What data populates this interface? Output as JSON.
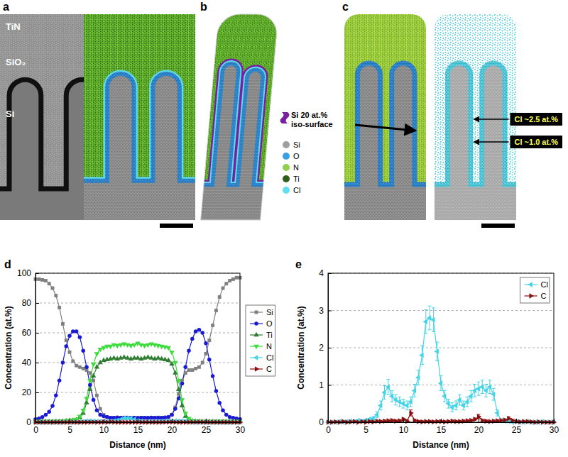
{
  "figure": {
    "panel_labels": [
      "a",
      "b",
      "c",
      "d",
      "e"
    ],
    "panel_a": {
      "labels": [
        "TiN",
        "SiO₂",
        "Si"
      ]
    },
    "panel_b": {
      "iso_surface": {
        "label": "Si 20 at.% iso-surface",
        "color": "#7a1fa0"
      },
      "elements": [
        {
          "name": "Si",
          "color": "#9e9e9e"
        },
        {
          "name": "O",
          "color": "#3aa0e0"
        },
        {
          "name": "N",
          "color": "#8fd14f"
        },
        {
          "name": "Ti",
          "color": "#2f5f1f"
        },
        {
          "name": "Cl",
          "color": "#5fe0ee"
        }
      ]
    },
    "panel_c": {
      "annotations": [
        "Cl ~2.5 at.%",
        "Cl ~1.0 at.%"
      ]
    }
  },
  "chart_data": [
    {
      "type": "line",
      "x_label": "Distance (nm)",
      "y_label": "Concentration (at.%)",
      "x": [
        0,
        0.5,
        1,
        1.5,
        2,
        2.5,
        3,
        3.5,
        4,
        4.5,
        5,
        5.5,
        6,
        6.5,
        7,
        7.5,
        8,
        8.5,
        9,
        9.5,
        10,
        10.5,
        11,
        11.5,
        12,
        12.5,
        13,
        13.5,
        14,
        14.5,
        15,
        15.5,
        16,
        16.5,
        17,
        17.5,
        18,
        18.5,
        19,
        19.5,
        20,
        20.5,
        21,
        21.5,
        22,
        22.5,
        23,
        23.5,
        24,
        24.5,
        25,
        25.5,
        26,
        26.5,
        27,
        27.5,
        28,
        28.5,
        29,
        29.5,
        30
      ],
      "xlim": [
        0,
        30
      ],
      "xticks": [
        0,
        5,
        10,
        15,
        20,
        25,
        30
      ],
      "ylim": [
        0,
        100
      ],
      "yticks": [
        0,
        20,
        40,
        60,
        80,
        100
      ],
      "grid": "y",
      "legend": "right",
      "series": [
        {
          "name": "Si",
          "color": "#808080",
          "marker": "square",
          "values": [
            96,
            96,
            95.5,
            95,
            93,
            90,
            85,
            77,
            66,
            55,
            47,
            41,
            38,
            37,
            36,
            35,
            33,
            28,
            18,
            9,
            5,
            3.5,
            3,
            3,
            2.8,
            3,
            3.2,
            3,
            2.9,
            3,
            3,
            3.1,
            3,
            2.8,
            3,
            3,
            3.2,
            3,
            3,
            3.5,
            5,
            10,
            19,
            28,
            33,
            35,
            35,
            36,
            37,
            40,
            46,
            55,
            65,
            75,
            84,
            90,
            93,
            95,
            96,
            97,
            97
          ]
        },
        {
          "name": "O",
          "color": "#1a1ad6",
          "marker": "circle",
          "values": [
            2,
            2.5,
            3.5,
            5,
            7,
            11,
            18,
            28,
            40,
            51,
            58,
            61,
            61,
            57,
            48,
            37,
            25,
            15,
            8,
            5,
            4,
            3.5,
            3,
            3,
            3.2,
            3,
            3,
            3.1,
            3,
            3,
            2.9,
            3,
            3,
            3,
            3.1,
            3,
            3,
            3,
            3.2,
            3.5,
            5,
            9,
            16,
            26,
            37,
            48,
            56,
            61,
            62,
            60,
            53,
            42,
            31,
            21,
            13,
            8,
            5,
            3.5,
            3,
            2.5,
            2
          ]
        },
        {
          "name": "Ti",
          "color": "#2e7d32",
          "marker": "triangle-up",
          "values": [
            0.3,
            0.3,
            0.3,
            0.3,
            0.3,
            0.3,
            0.4,
            0.5,
            0.6,
            0.8,
            1,
            1.2,
            1.5,
            3,
            6,
            13,
            22,
            31,
            37,
            40,
            41.5,
            42,
            42.5,
            43,
            42.5,
            43,
            43.5,
            43,
            42.5,
            43,
            43,
            42.5,
            43,
            43.5,
            43,
            42.5,
            43,
            42.5,
            42,
            41.5,
            39,
            33,
            22,
            11,
            4,
            1.5,
            0.8,
            0.5,
            0.4,
            0.3,
            0.3,
            0.3,
            0.3,
            0.3,
            0.3,
            0.3,
            0.3,
            0.3,
            0.3,
            0.3,
            0.3
          ]
        },
        {
          "name": "N",
          "color": "#3ddc3d",
          "marker": "triangle-down",
          "values": [
            0.5,
            0.5,
            0.5,
            0.5,
            0.5,
            0.5,
            0.6,
            0.7,
            0.8,
            1,
            1.2,
            1.5,
            2,
            4,
            8,
            16,
            28,
            39,
            46,
            49,
            50,
            51,
            51,
            52,
            51.5,
            52,
            52.5,
            52,
            51.5,
            52,
            53,
            52,
            51.5,
            52,
            52.5,
            52,
            51.5,
            51,
            50.5,
            50,
            47,
            40,
            28,
            15,
            6,
            2.5,
            1.2,
            0.8,
            0.6,
            0.5,
            0.5,
            0.5,
            0.5,
            0.5,
            0.5,
            0.5,
            0.5,
            0.5,
            0.5,
            0.5,
            0.5
          ]
        },
        {
          "name": "Cl",
          "color": "#45d4e6",
          "marker": "triangle-left",
          "values": [
            0,
            0,
            0,
            0.02,
            0,
            0.02,
            0.03,
            0.02,
            0.05,
            0.03,
            0.05,
            0.08,
            0.1,
            0.2,
            0.45,
            0.8,
            0.95,
            0.7,
            0.6,
            0.55,
            0.5,
            0.45,
            0.55,
            0.85,
            1.2,
            1.8,
            2.7,
            2.8,
            2.75,
            1.9,
            1.05,
            0.7,
            0.5,
            0.4,
            0.45,
            0.6,
            0.45,
            0.55,
            0.7,
            0.85,
            0.9,
            0.95,
            0.85,
            0.95,
            0.75,
            0.25,
            0.05,
            0.03,
            0.02,
            0,
            0.02,
            0,
            0,
            0.02,
            0,
            0,
            0,
            0.02,
            0,
            0,
            0
          ]
        },
        {
          "name": "C",
          "color": "#8b1010",
          "marker": "triangle-right",
          "values": [
            0,
            0,
            0.01,
            0,
            0.02,
            0,
            0.01,
            0.02,
            0,
            0.02,
            0,
            0.02,
            0.01,
            0.03,
            0.02,
            0.03,
            0.04,
            0.05,
            0.03,
            0.04,
            0.08,
            0.03,
            0.25,
            0.05,
            0.02,
            0.01,
            0.02,
            0.02,
            0.01,
            0.02,
            0.02,
            0.01,
            0.02,
            0.03,
            0.02,
            0.02,
            0.03,
            0.04,
            0.05,
            0.08,
            0.15,
            0.05,
            0.03,
            0.02,
            0.03,
            0.04,
            0.05,
            0.06,
            0.1,
            0.05,
            0.02,
            0.01,
            0.02,
            0.02,
            0.01,
            0,
            0.01,
            0,
            0,
            0,
            0
          ]
        }
      ]
    },
    {
      "type": "line",
      "x_label": "Distance (nm)",
      "y_label": "Concentration (at.%)",
      "x": [
        0,
        0.5,
        1,
        1.5,
        2,
        2.5,
        3,
        3.5,
        4,
        4.5,
        5,
        5.5,
        6,
        6.5,
        7,
        7.5,
        8,
        8.5,
        9,
        9.5,
        10,
        10.5,
        11,
        11.5,
        12,
        12.5,
        13,
        13.5,
        14,
        14.5,
        15,
        15.5,
        16,
        16.5,
        17,
        17.5,
        18,
        18.5,
        19,
        19.5,
        20,
        20.5,
        21,
        21.5,
        22,
        22.5,
        23,
        23.5,
        24,
        24.5,
        25,
        25.5,
        26,
        26.5,
        27,
        27.5,
        28,
        28.5,
        29,
        29.5,
        30
      ],
      "xlim": [
        0,
        30
      ],
      "xticks": [
        0,
        5,
        10,
        15,
        20,
        25,
        30
      ],
      "ylim": [
        0,
        4
      ],
      "yticks": [
        0,
        1,
        2,
        3,
        4
      ],
      "grid": "y",
      "legend": "upper right",
      "series": [
        {
          "name": "Cl",
          "color": "#45d4e6",
          "marker": "triangle-left",
          "values": [
            0,
            0,
            0,
            0.02,
            0,
            0.02,
            0.03,
            0.02,
            0.05,
            0.03,
            0.05,
            0.08,
            0.1,
            0.2,
            0.45,
            0.8,
            0.95,
            0.7,
            0.6,
            0.55,
            0.5,
            0.45,
            0.55,
            0.85,
            1.2,
            1.8,
            2.7,
            2.8,
            2.75,
            1.9,
            1.05,
            0.7,
            0.5,
            0.4,
            0.45,
            0.6,
            0.45,
            0.55,
            0.7,
            0.85,
            0.9,
            0.95,
            0.85,
            0.95,
            0.75,
            0.25,
            0.05,
            0.03,
            0.02,
            0,
            0.02,
            0,
            0,
            0.02,
            0,
            0,
            0,
            0.02,
            0,
            0,
            0
          ],
          "errors": [
            0.02,
            0.02,
            0.02,
            0.02,
            0.02,
            0.02,
            0.02,
            0.02,
            0.02,
            0.02,
            0.02,
            0.02,
            0.05,
            0.08,
            0.12,
            0.18,
            0.2,
            0.15,
            0.14,
            0.13,
            0.12,
            0.12,
            0.13,
            0.17,
            0.2,
            0.25,
            0.32,
            0.32,
            0.32,
            0.25,
            0.2,
            0.15,
            0.12,
            0.12,
            0.12,
            0.14,
            0.12,
            0.13,
            0.15,
            0.17,
            0.18,
            0.18,
            0.17,
            0.18,
            0.16,
            0.08,
            0.03,
            0.02,
            0.02,
            0.02,
            0.02,
            0.02,
            0.02,
            0.02,
            0.02,
            0.02,
            0.02,
            0.02,
            0.02,
            0.02,
            0.02
          ]
        },
        {
          "name": "C",
          "color": "#8b1010",
          "marker": "triangle-right",
          "values": [
            0,
            0,
            0.01,
            0,
            0.02,
            0,
            0.01,
            0.02,
            0,
            0.02,
            0,
            0.02,
            0.01,
            0.03,
            0.02,
            0.03,
            0.04,
            0.05,
            0.03,
            0.04,
            0.08,
            0.03,
            0.25,
            0.05,
            0.02,
            0.01,
            0.02,
            0.02,
            0.01,
            0.02,
            0.02,
            0.01,
            0.02,
            0.03,
            0.02,
            0.02,
            0.03,
            0.04,
            0.05,
            0.08,
            0.15,
            0.05,
            0.03,
            0.02,
            0.03,
            0.04,
            0.05,
            0.06,
            0.1,
            0.05,
            0.02,
            0.01,
            0.02,
            0.02,
            0.01,
            0,
            0.01,
            0,
            0,
            0,
            0
          ],
          "errors": [
            0.03,
            0.03,
            0.03,
            0.03,
            0.03,
            0.03,
            0.03,
            0.03,
            0.03,
            0.03,
            0.03,
            0.03,
            0.03,
            0.03,
            0.03,
            0.03,
            0.03,
            0.03,
            0.03,
            0.03,
            0.03,
            0.03,
            0.08,
            0.03,
            0.03,
            0.03,
            0.03,
            0.03,
            0.03,
            0.03,
            0.03,
            0.03,
            0.03,
            0.03,
            0.03,
            0.03,
            0.03,
            0.03,
            0.03,
            0.03,
            0.06,
            0.03,
            0.03,
            0.03,
            0.03,
            0.03,
            0.03,
            0.03,
            0.05,
            0.03,
            0.03,
            0.03,
            0.03,
            0.03,
            0.03,
            0.03,
            0.03,
            0.03,
            0.03,
            0.03,
            0.03
          ]
        }
      ]
    }
  ]
}
